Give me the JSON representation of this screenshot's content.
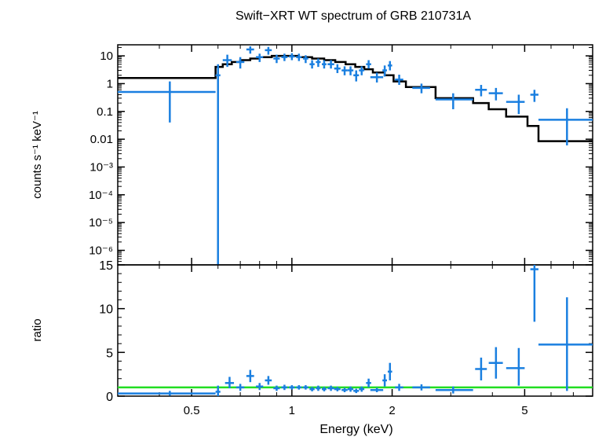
{
  "chart_data": {
    "type": "scatter",
    "title": "Swift−XRT WT spectrum of GRB 210731A",
    "xlabel": "Energy (keV)",
    "x_scale": "log",
    "xlim": [
      0.3,
      8.0
    ],
    "x_ticks": [
      0.5,
      1,
      2,
      5
    ],
    "x_tick_labels": [
      "0.5",
      "1",
      "2",
      "5"
    ],
    "colors": {
      "data": "#1a7fe0",
      "model": "#000000",
      "ratio_line": "#22dd22"
    },
    "panels": [
      {
        "name": "spectrum",
        "ylabel": "counts s⁻¹ keV⁻¹",
        "y_scale": "log",
        "ylim": [
          3e-07,
          25
        ],
        "y_ticks": [
          1e-06,
          1e-05,
          0.0001,
          0.001,
          0.01,
          0.1,
          1,
          10
        ],
        "y_tick_labels": [
          "10⁻⁶",
          "10⁻⁵",
          "10⁻⁴",
          "10⁻³",
          "0.01",
          "0.1",
          "1",
          "10"
        ],
        "series": [
          {
            "kind": "data",
            "points": [
              {
                "x": 0.43,
                "xlo": 0.3,
                "xhi": 0.59,
                "y": 0.5,
                "ylo": 0.04,
                "yhi": 1.2
              },
              {
                "x": 0.6,
                "xlo": 0.59,
                "xhi": 0.61,
                "y": 2.0,
                "ylo": 3e-07,
                "yhi": 5
              },
              {
                "x": 0.64,
                "xlo": 0.62,
                "xhi": 0.66,
                "y": 7.0,
                "ylo": 4,
                "yhi": 11
              },
              {
                "x": 0.7,
                "xlo": 0.68,
                "xhi": 0.72,
                "y": 6.0,
                "ylo": 3.5,
                "yhi": 9
              },
              {
                "x": 0.75,
                "xlo": 0.73,
                "xhi": 0.77,
                "y": 17.0,
                "ylo": 12,
                "yhi": 22
              },
              {
                "x": 0.8,
                "xlo": 0.78,
                "xhi": 0.82,
                "y": 9.0,
                "ylo": 6,
                "yhi": 12
              },
              {
                "x": 0.85,
                "xlo": 0.83,
                "xhi": 0.87,
                "y": 16.0,
                "ylo": 11,
                "yhi": 21
              },
              {
                "x": 0.9,
                "xlo": 0.88,
                "xhi": 0.92,
                "y": 8.0,
                "ylo": 5.5,
                "yhi": 11
              },
              {
                "x": 0.95,
                "xlo": 0.93,
                "xhi": 0.97,
                "y": 9.0,
                "ylo": 6.5,
                "yhi": 12
              },
              {
                "x": 1.0,
                "xlo": 0.98,
                "xhi": 1.02,
                "y": 9.5,
                "ylo": 7,
                "yhi": 12.5
              },
              {
                "x": 1.05,
                "xlo": 1.03,
                "xhi": 1.07,
                "y": 9.0,
                "ylo": 6.5,
                "yhi": 12
              },
              {
                "x": 1.1,
                "xlo": 1.08,
                "xhi": 1.12,
                "y": 8.0,
                "ylo": 5.5,
                "yhi": 10.5
              },
              {
                "x": 1.15,
                "xlo": 1.13,
                "xhi": 1.17,
                "y": 5.0,
                "ylo": 3.5,
                "yhi": 7
              },
              {
                "x": 1.2,
                "xlo": 1.18,
                "xhi": 1.22,
                "y": 6.0,
                "ylo": 4,
                "yhi": 8
              },
              {
                "x": 1.25,
                "xlo": 1.23,
                "xhi": 1.27,
                "y": 5.0,
                "ylo": 3.5,
                "yhi": 7
              },
              {
                "x": 1.31,
                "xlo": 1.28,
                "xhi": 1.34,
                "y": 5.0,
                "ylo": 3.5,
                "yhi": 7
              },
              {
                "x": 1.37,
                "xlo": 1.34,
                "xhi": 1.4,
                "y": 3.5,
                "ylo": 2.4,
                "yhi": 5
              },
              {
                "x": 1.44,
                "xlo": 1.41,
                "xhi": 1.47,
                "y": 3.0,
                "ylo": 2,
                "yhi": 4.2
              },
              {
                "x": 1.5,
                "xlo": 1.47,
                "xhi": 1.53,
                "y": 3.0,
                "ylo": 2,
                "yhi": 4.2
              },
              {
                "x": 1.56,
                "xlo": 1.53,
                "xhi": 1.59,
                "y": 2.0,
                "ylo": 1.2,
                "yhi": 3
              },
              {
                "x": 1.62,
                "xlo": 1.59,
                "xhi": 1.65,
                "y": 3.0,
                "ylo": 2,
                "yhi": 4.2
              },
              {
                "x": 1.7,
                "xlo": 1.67,
                "xhi": 1.73,
                "y": 5.0,
                "ylo": 3.5,
                "yhi": 7
              },
              {
                "x": 1.8,
                "xlo": 1.72,
                "xhi": 1.88,
                "y": 1.7,
                "ylo": 1.1,
                "yhi": 2.5
              },
              {
                "x": 1.9,
                "xlo": 1.87,
                "xhi": 1.93,
                "y": 3.0,
                "ylo": 1.8,
                "yhi": 4.5
              },
              {
                "x": 1.97,
                "xlo": 1.94,
                "xhi": 2.0,
                "y": 4.5,
                "ylo": 3,
                "yhi": 6.5
              },
              {
                "x": 2.1,
                "xlo": 2.04,
                "xhi": 2.16,
                "y": 1.4,
                "ylo": 0.9,
                "yhi": 2.1
              },
              {
                "x": 2.45,
                "xlo": 2.3,
                "xhi": 2.6,
                "y": 0.7,
                "ylo": 0.45,
                "yhi": 1.0
              },
              {
                "x": 3.05,
                "xlo": 2.7,
                "xhi": 3.5,
                "y": 0.27,
                "ylo": 0.12,
                "yhi": 0.45
              },
              {
                "x": 3.7,
                "xlo": 3.55,
                "xhi": 3.85,
                "y": 0.6,
                "ylo": 0.35,
                "yhi": 0.9
              },
              {
                "x": 4.1,
                "xlo": 3.9,
                "xhi": 4.3,
                "y": 0.45,
                "ylo": 0.25,
                "yhi": 0.7
              },
              {
                "x": 4.8,
                "xlo": 4.4,
                "xhi": 5.0,
                "y": 0.22,
                "ylo": 0.08,
                "yhi": 0.4
              },
              {
                "x": 5.35,
                "xlo": 5.2,
                "xhi": 5.5,
                "y": 0.4,
                "ylo": 0.22,
                "yhi": 0.6
              },
              {
                "x": 6.7,
                "xlo": 5.5,
                "xhi": 8.0,
                "y": 0.05,
                "ylo": 0.006,
                "yhi": 0.13
              }
            ]
          },
          {
            "kind": "model_step",
            "steps": [
              {
                "xlo": 0.3,
                "xhi": 0.59,
                "y": 1.6
              },
              {
                "xlo": 0.59,
                "xhi": 0.62,
                "y": 4.0
              },
              {
                "xlo": 0.62,
                "xhi": 0.66,
                "y": 5.0
              },
              {
                "xlo": 0.66,
                "xhi": 0.7,
                "y": 6.0
              },
              {
                "xlo": 0.7,
                "xhi": 0.75,
                "y": 7.0
              },
              {
                "xlo": 0.75,
                "xhi": 0.8,
                "y": 8.0
              },
              {
                "xlo": 0.8,
                "xhi": 0.87,
                "y": 9.0
              },
              {
                "xlo": 0.87,
                "xhi": 1.05,
                "y": 10.0
              },
              {
                "xlo": 1.05,
                "xhi": 1.15,
                "y": 9.0
              },
              {
                "xlo": 1.15,
                "xhi": 1.25,
                "y": 8.0
              },
              {
                "xlo": 1.25,
                "xhi": 1.35,
                "y": 7.0
              },
              {
                "xlo": 1.35,
                "xhi": 1.45,
                "y": 6.0
              },
              {
                "xlo": 1.45,
                "xhi": 1.55,
                "y": 5.0
              },
              {
                "xlo": 1.55,
                "xhi": 1.65,
                "y": 4.0
              },
              {
                "xlo": 1.65,
                "xhi": 1.75,
                "y": 3.3
              },
              {
                "xlo": 1.75,
                "xhi": 1.9,
                "y": 2.5
              },
              {
                "xlo": 1.9,
                "xhi": 2.02,
                "y": 2.0
              },
              {
                "xlo": 2.02,
                "xhi": 2.2,
                "y": 1.2
              },
              {
                "xlo": 2.2,
                "xhi": 2.7,
                "y": 0.75
              },
              {
                "xlo": 2.7,
                "xhi": 3.5,
                "y": 0.3
              },
              {
                "xlo": 3.5,
                "xhi": 3.9,
                "y": 0.2
              },
              {
                "xlo": 3.9,
                "xhi": 4.4,
                "y": 0.12
              },
              {
                "xlo": 4.4,
                "xhi": 5.1,
                "y": 0.065
              },
              {
                "xlo": 5.1,
                "xhi": 5.5,
                "y": 0.03
              },
              {
                "xlo": 5.5,
                "xhi": 8.0,
                "y": 0.0085
              }
            ]
          }
        ]
      },
      {
        "name": "ratio",
        "ylabel": "ratio",
        "y_scale": "linear",
        "ylim": [
          0,
          15
        ],
        "y_ticks": [
          0,
          5,
          10,
          15
        ],
        "y_tick_labels": [
          "0",
          "5",
          "10",
          "15"
        ],
        "reference_line": 1,
        "points": [
          {
            "x": 0.43,
            "xlo": 0.3,
            "xhi": 0.59,
            "y": 0.3,
            "ylo": 0.05,
            "yhi": 0.6
          },
          {
            "x": 0.6,
            "xlo": 0.59,
            "xhi": 0.61,
            "y": 0.5,
            "ylo": 0.0,
            "yhi": 1.2
          },
          {
            "x": 0.65,
            "xlo": 0.63,
            "xhi": 0.67,
            "y": 1.5,
            "ylo": 0.9,
            "yhi": 2.2
          },
          {
            "x": 0.7,
            "xlo": 0.68,
            "xhi": 0.72,
            "y": 1.0,
            "ylo": 0.6,
            "yhi": 1.4
          },
          {
            "x": 0.75,
            "xlo": 0.73,
            "xhi": 0.77,
            "y": 2.3,
            "ylo": 1.6,
            "yhi": 3.0
          },
          {
            "x": 0.8,
            "xlo": 0.78,
            "xhi": 0.82,
            "y": 1.1,
            "ylo": 0.7,
            "yhi": 1.5
          },
          {
            "x": 0.85,
            "xlo": 0.83,
            "xhi": 0.87,
            "y": 1.8,
            "ylo": 1.3,
            "yhi": 2.3
          },
          {
            "x": 0.9,
            "xlo": 0.88,
            "xhi": 0.92,
            "y": 0.9,
            "ylo": 0.6,
            "yhi": 1.2
          },
          {
            "x": 0.95,
            "xlo": 0.93,
            "xhi": 0.97,
            "y": 1.0,
            "ylo": 0.7,
            "yhi": 1.3
          },
          {
            "x": 1.0,
            "xlo": 0.98,
            "xhi": 1.02,
            "y": 1.0,
            "ylo": 0.75,
            "yhi": 1.25
          },
          {
            "x": 1.05,
            "xlo": 1.03,
            "xhi": 1.07,
            "y": 1.0,
            "ylo": 0.75,
            "yhi": 1.25
          },
          {
            "x": 1.1,
            "xlo": 1.08,
            "xhi": 1.12,
            "y": 1.0,
            "ylo": 0.75,
            "yhi": 1.25
          },
          {
            "x": 1.15,
            "xlo": 1.13,
            "xhi": 1.17,
            "y": 0.8,
            "ylo": 0.55,
            "yhi": 1.05
          },
          {
            "x": 1.2,
            "xlo": 1.18,
            "xhi": 1.22,
            "y": 0.9,
            "ylo": 0.6,
            "yhi": 1.2
          },
          {
            "x": 1.25,
            "xlo": 1.23,
            "xhi": 1.27,
            "y": 0.8,
            "ylo": 0.55,
            "yhi": 1.05
          },
          {
            "x": 1.31,
            "xlo": 1.28,
            "xhi": 1.34,
            "y": 0.9,
            "ylo": 0.6,
            "yhi": 1.2
          },
          {
            "x": 1.37,
            "xlo": 1.34,
            "xhi": 1.4,
            "y": 0.8,
            "ylo": 0.55,
            "yhi": 1.05
          },
          {
            "x": 1.44,
            "xlo": 1.41,
            "xhi": 1.47,
            "y": 0.7,
            "ylo": 0.45,
            "yhi": 0.95
          },
          {
            "x": 1.5,
            "xlo": 1.47,
            "xhi": 1.53,
            "y": 0.8,
            "ylo": 0.5,
            "yhi": 1.1
          },
          {
            "x": 1.56,
            "xlo": 1.53,
            "xhi": 1.59,
            "y": 0.6,
            "ylo": 0.35,
            "yhi": 0.85
          },
          {
            "x": 1.62,
            "xlo": 1.59,
            "xhi": 1.65,
            "y": 0.8,
            "ylo": 0.5,
            "yhi": 1.1
          },
          {
            "x": 1.7,
            "xlo": 1.67,
            "xhi": 1.73,
            "y": 1.5,
            "ylo": 1.0,
            "yhi": 2.0
          },
          {
            "x": 1.8,
            "xlo": 1.72,
            "xhi": 1.88,
            "y": 0.7,
            "ylo": 0.45,
            "yhi": 0.95
          },
          {
            "x": 1.9,
            "xlo": 1.87,
            "xhi": 1.93,
            "y": 1.8,
            "ylo": 1.1,
            "yhi": 2.5
          },
          {
            "x": 1.97,
            "xlo": 1.94,
            "xhi": 2.0,
            "y": 2.8,
            "ylo": 1.8,
            "yhi": 3.8
          },
          {
            "x": 2.1,
            "xlo": 2.04,
            "xhi": 2.16,
            "y": 1.0,
            "ylo": 0.6,
            "yhi": 1.4
          },
          {
            "x": 2.45,
            "xlo": 2.3,
            "xhi": 2.6,
            "y": 1.0,
            "ylo": 0.65,
            "yhi": 1.35
          },
          {
            "x": 3.05,
            "xlo": 2.7,
            "xhi": 3.5,
            "y": 0.7,
            "ylo": 0.3,
            "yhi": 1.1
          },
          {
            "x": 3.7,
            "xlo": 3.55,
            "xhi": 3.85,
            "y": 3.1,
            "ylo": 1.8,
            "yhi": 4.4
          },
          {
            "x": 4.1,
            "xlo": 3.9,
            "xhi": 4.3,
            "y": 3.8,
            "ylo": 2.0,
            "yhi": 5.6
          },
          {
            "x": 4.8,
            "xlo": 4.4,
            "xhi": 5.0,
            "y": 3.2,
            "ylo": 1.2,
            "yhi": 5.5
          },
          {
            "x": 5.35,
            "xlo": 5.2,
            "xhi": 5.5,
            "y": 14.5,
            "ylo": 8.5,
            "yhi": 15.0
          },
          {
            "x": 6.7,
            "xlo": 5.5,
            "xhi": 8.0,
            "y": 5.9,
            "ylo": 0.6,
            "yhi": 11.3
          }
        ]
      }
    ]
  }
}
